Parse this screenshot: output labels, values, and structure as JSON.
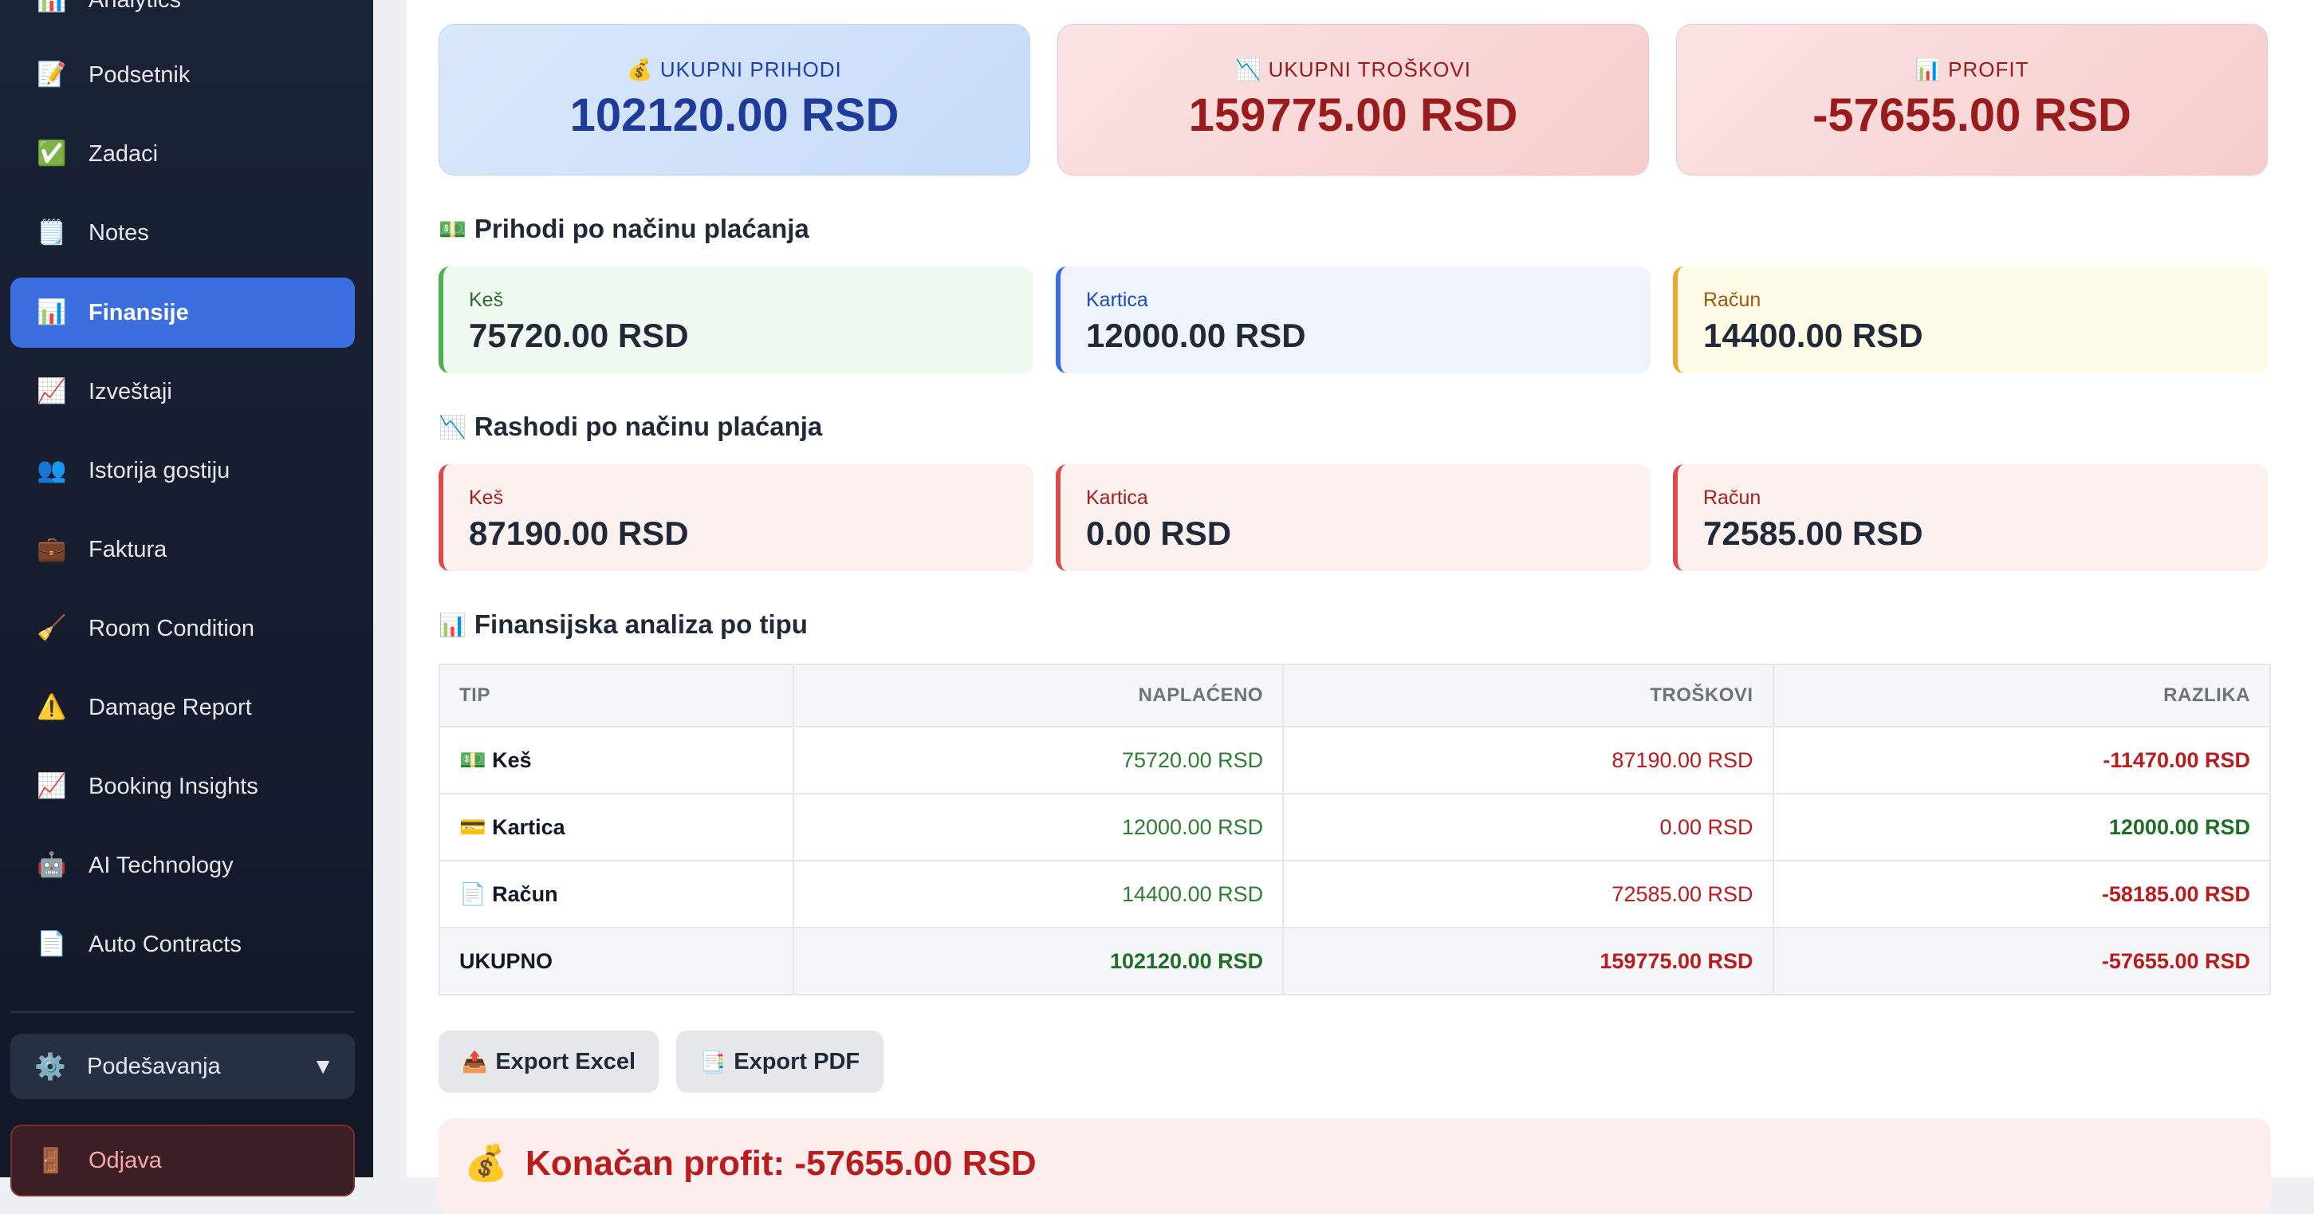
{
  "sidebar": {
    "items": [
      {
        "label": "Analytics",
        "icon": "📊"
      },
      {
        "label": "Podsetnik",
        "icon": "📝"
      },
      {
        "label": "Zadaci",
        "icon": "✅"
      },
      {
        "label": "Notes",
        "icon": "🗒️"
      },
      {
        "label": "Finansije",
        "icon": "📊"
      },
      {
        "label": "Izveštaji",
        "icon": "📈"
      },
      {
        "label": "Istorija gostiju",
        "icon": "👥"
      },
      {
        "label": "Faktura",
        "icon": "💼"
      },
      {
        "label": "Room Condition",
        "icon": "🧹"
      },
      {
        "label": "Damage Report",
        "icon": "⚠️"
      },
      {
        "label": "Booking Insights",
        "icon": "📈"
      },
      {
        "label": "AI Technology",
        "icon": "🤖"
      },
      {
        "label": "Auto Contracts",
        "icon": "📄"
      }
    ],
    "active": "Finansije",
    "settings": {
      "label": "Podešavanja",
      "icon": "⚙️",
      "caret": "▼"
    },
    "logout": {
      "label": "Odjava",
      "icon": "🚪"
    }
  },
  "summary": {
    "income": {
      "icon": "💰",
      "label": "UKUPNI PRIHODI",
      "value": "102120.00 RSD"
    },
    "expenses": {
      "icon": "📉",
      "label": "UKUPNI TROŠKOVI",
      "value": "159775.00 RSD"
    },
    "profit": {
      "icon": "📊",
      "label": "PROFIT",
      "value": "-57655.00 RSD"
    }
  },
  "income_by_method": {
    "icon": "💵",
    "title": "Prihodi po načinu plaćanja",
    "items": [
      {
        "label": "Keš",
        "value": "75720.00 RSD"
      },
      {
        "label": "Kartica",
        "value": "12000.00 RSD"
      },
      {
        "label": "Račun",
        "value": "14400.00 RSD"
      }
    ]
  },
  "expenses_by_method": {
    "icon": "📉",
    "title": "Rashodi po načinu plaćanja",
    "items": [
      {
        "label": "Keš",
        "value": "87190.00 RSD"
      },
      {
        "label": "Kartica",
        "value": "0.00 RSD"
      },
      {
        "label": "Račun",
        "value": "72585.00 RSD"
      }
    ]
  },
  "analysis": {
    "icon": "📊",
    "title": "Finansijska analiza po tipu",
    "headers": {
      "tip": "TIP",
      "collected": "NAPLAĆENO",
      "costs": "TROŠKOVI",
      "diff": "RAZLIKA"
    },
    "rows": [
      {
        "icon": "💵",
        "tip": "Keš",
        "collected": "75720.00 RSD",
        "costs": "87190.00 RSD",
        "diff": "-11470.00 RSD"
      },
      {
        "icon": "💳",
        "tip": "Kartica",
        "collected": "12000.00 RSD",
        "costs": "0.00 RSD",
        "diff": "12000.00 RSD"
      },
      {
        "icon": "📄",
        "tip": "Račun",
        "collected": "14400.00 RSD",
        "costs": "72585.00 RSD",
        "diff": "-58185.00 RSD"
      }
    ],
    "total": {
      "tip": "UKUPNO",
      "collected": "102120.00 RSD",
      "costs": "159775.00 RSD",
      "diff": "-57655.00 RSD"
    }
  },
  "actions": {
    "export_excel": {
      "icon": "📤",
      "label": "Export Excel"
    },
    "export_pdf": {
      "icon": "📑",
      "label": "Export PDF"
    }
  },
  "final": {
    "icon": "💰",
    "text": "Konačan profit: -57655.00 RSD"
  }
}
